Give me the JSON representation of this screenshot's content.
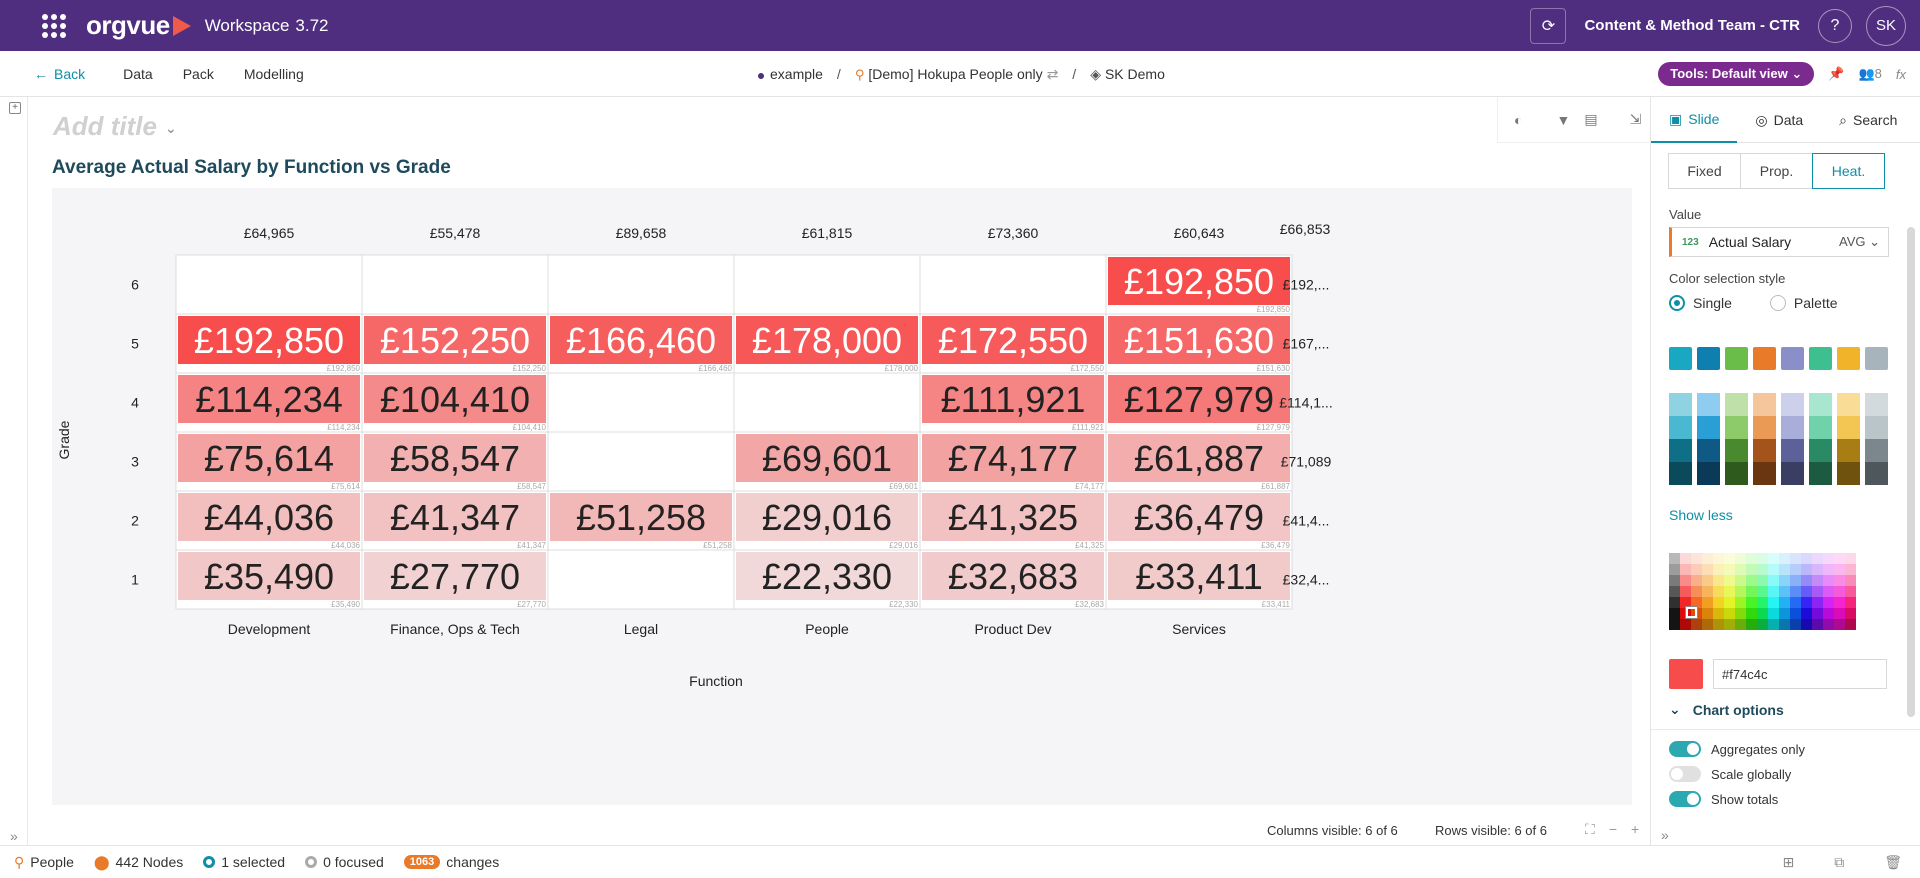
{
  "topbar": {
    "logo": "orgvue",
    "workspace": "Workspace",
    "version": "3.72",
    "team": "Content & Method Team - CTR",
    "help": "?",
    "avatar": "SK"
  },
  "nav": {
    "back": "Back",
    "items": [
      "Data",
      "Pack",
      "Modelling"
    ],
    "crumbs": {
      "dataset": "example",
      "people": "[Demo] Hokupa People only",
      "demo": "SK Demo"
    },
    "tools_pill": "Tools: Default view",
    "people_count": "8",
    "fx": "fx"
  },
  "canvas": {
    "add_title": "Add title",
    "chart_title": "Average Actual Salary by Function vs Grade",
    "footer": {
      "cols_visible": "Columns visible: 6 of 6",
      "rows_visible": "Rows visible: 6 of 6"
    }
  },
  "chart_data": {
    "type": "heatmap",
    "xlabel": "Function",
    "ylabel": "Grade",
    "columns": [
      "Development",
      "Finance, Ops & Tech",
      "Legal",
      "People",
      "Product Dev",
      "Services"
    ],
    "rows": [
      "6",
      "5",
      "4",
      "3",
      "2",
      "1"
    ],
    "column_totals": [
      "£64,965",
      "£55,478",
      "£89,658",
      "£61,815",
      "£73,360",
      "£60,643"
    ],
    "grand_total": "£66,853",
    "row_totals": [
      "£192,...",
      "£167,...",
      "£114,1...",
      "£71,089",
      "£41,4...",
      "£32,4..."
    ],
    "cells": [
      [
        null,
        null,
        null,
        null,
        null,
        192850
      ],
      [
        192850,
        152250,
        166460,
        178000,
        172550,
        151630
      ],
      [
        114234,
        104410,
        null,
        null,
        111921,
        127979
      ],
      [
        75614,
        58547,
        null,
        69601,
        74177,
        61887
      ],
      [
        44036,
        41347,
        51258,
        29016,
        41325,
        36479
      ],
      [
        35490,
        27770,
        null,
        22330,
        32683,
        33411
      ]
    ],
    "color": "#f74c4c",
    "scale": [
      20000,
      195000
    ],
    "grid": true
  },
  "panel": {
    "tabs": [
      "Slide",
      "Data",
      "Search"
    ],
    "scale_modes": [
      "Fixed",
      "Prop.",
      "Heat."
    ],
    "value_label": "Value",
    "value_field": "Actual Salary",
    "value_badge": "123",
    "value_agg": "AVG",
    "color_style_label": "Color selection style",
    "color_style_options": [
      "Single",
      "Palette"
    ],
    "base_swatches": [
      "#19a8c2",
      "#0f7fb0",
      "#6bbd4a",
      "#e87a2a",
      "#8a8fc9",
      "#3dbf8f",
      "#f0b32a",
      "#a7b4bb"
    ],
    "shade_columns": [
      [
        "#8fd3e2",
        "#4ab8d0",
        "#0f6f86",
        "#0b4a5a"
      ],
      [
        "#8ecdef",
        "#2a9fd6",
        "#0f5a85",
        "#0b3a58"
      ],
      [
        "#bfe0a8",
        "#8cca6a",
        "#4a8a2f",
        "#2f5a1e"
      ],
      [
        "#f5c59c",
        "#eb9a55",
        "#a4541a",
        "#6a3511"
      ],
      [
        "#cdd0ea",
        "#a9add9",
        "#5c6299",
        "#3a3e63"
      ],
      [
        "#a9e6cf",
        "#6fd2ab",
        "#2a8a66",
        "#1c5a42"
      ],
      [
        "#f9dc96",
        "#f3c552",
        "#a87d14",
        "#6e520d"
      ],
      [
        "#d3dadd",
        "#bac5ca",
        "#7b878d",
        "#4e575c"
      ]
    ],
    "show_less": "Show less",
    "hex_value": "#f74c4c",
    "chart_options": "Chart options",
    "toggles": [
      {
        "label": "Aggregates only",
        "on": true
      },
      {
        "label": "Scale globally",
        "on": false
      },
      {
        "label": "Show totals",
        "on": true
      }
    ]
  },
  "status": {
    "people": "People",
    "nodes": "442 Nodes",
    "selected": "1 selected",
    "focused": "0 focused",
    "changes_count": "1063",
    "changes": "changes"
  }
}
